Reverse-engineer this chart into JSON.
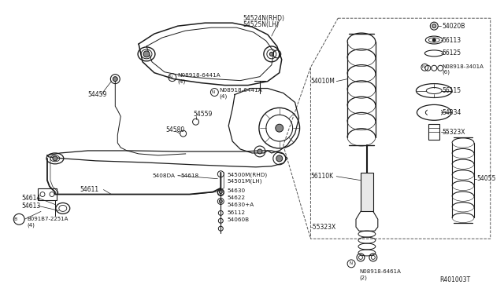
{
  "bg_color": "#ffffff",
  "line_color": "#1a1a1a",
  "fs": 5.5,
  "ref": "R401003T",
  "parts": {
    "upper_arm_RHD": "54524N(RHD)",
    "upper_arm_LHD": "54525N(LH)",
    "bolt_upper1": "N08918-6441A",
    "bolt_upper1b": "(4)",
    "bolt_upper2": "N08918-6441A",
    "bolt_upper2b": "(4)",
    "knuckle": "54459",
    "lower_arm_RHD": "54500M(RHD)",
    "lower_arm_LHD": "54501M(LH)",
    "sway_bar": "54611",
    "sway_mount1": "54614",
    "sway_mount2": "54613",
    "sway_bolt": "B091B7-2251A",
    "sway_bolt2": "(4)",
    "link1": "5408DA",
    "link2": "54618",
    "pin1": "54630",
    "pin2": "54622",
    "pin3": "54630+A",
    "nut1": "56112",
    "nut2": "54060B",
    "bump1": "54559",
    "bump2": "54580",
    "coil": "54010M",
    "strut": "56110K",
    "spring": "54055",
    "upper_mount": "54020B",
    "bearing1": "56113",
    "bearing2": "56125",
    "mount_bolt": "N08918-3401A",
    "mount_bolt2": "(6)",
    "seat1": "56115",
    "seat2": "54034",
    "bump_stop": "55323X",
    "bump_stop2": "-55323X",
    "strut_bolt": "N08918-6461A",
    "strut_bolt2": "(2)"
  }
}
